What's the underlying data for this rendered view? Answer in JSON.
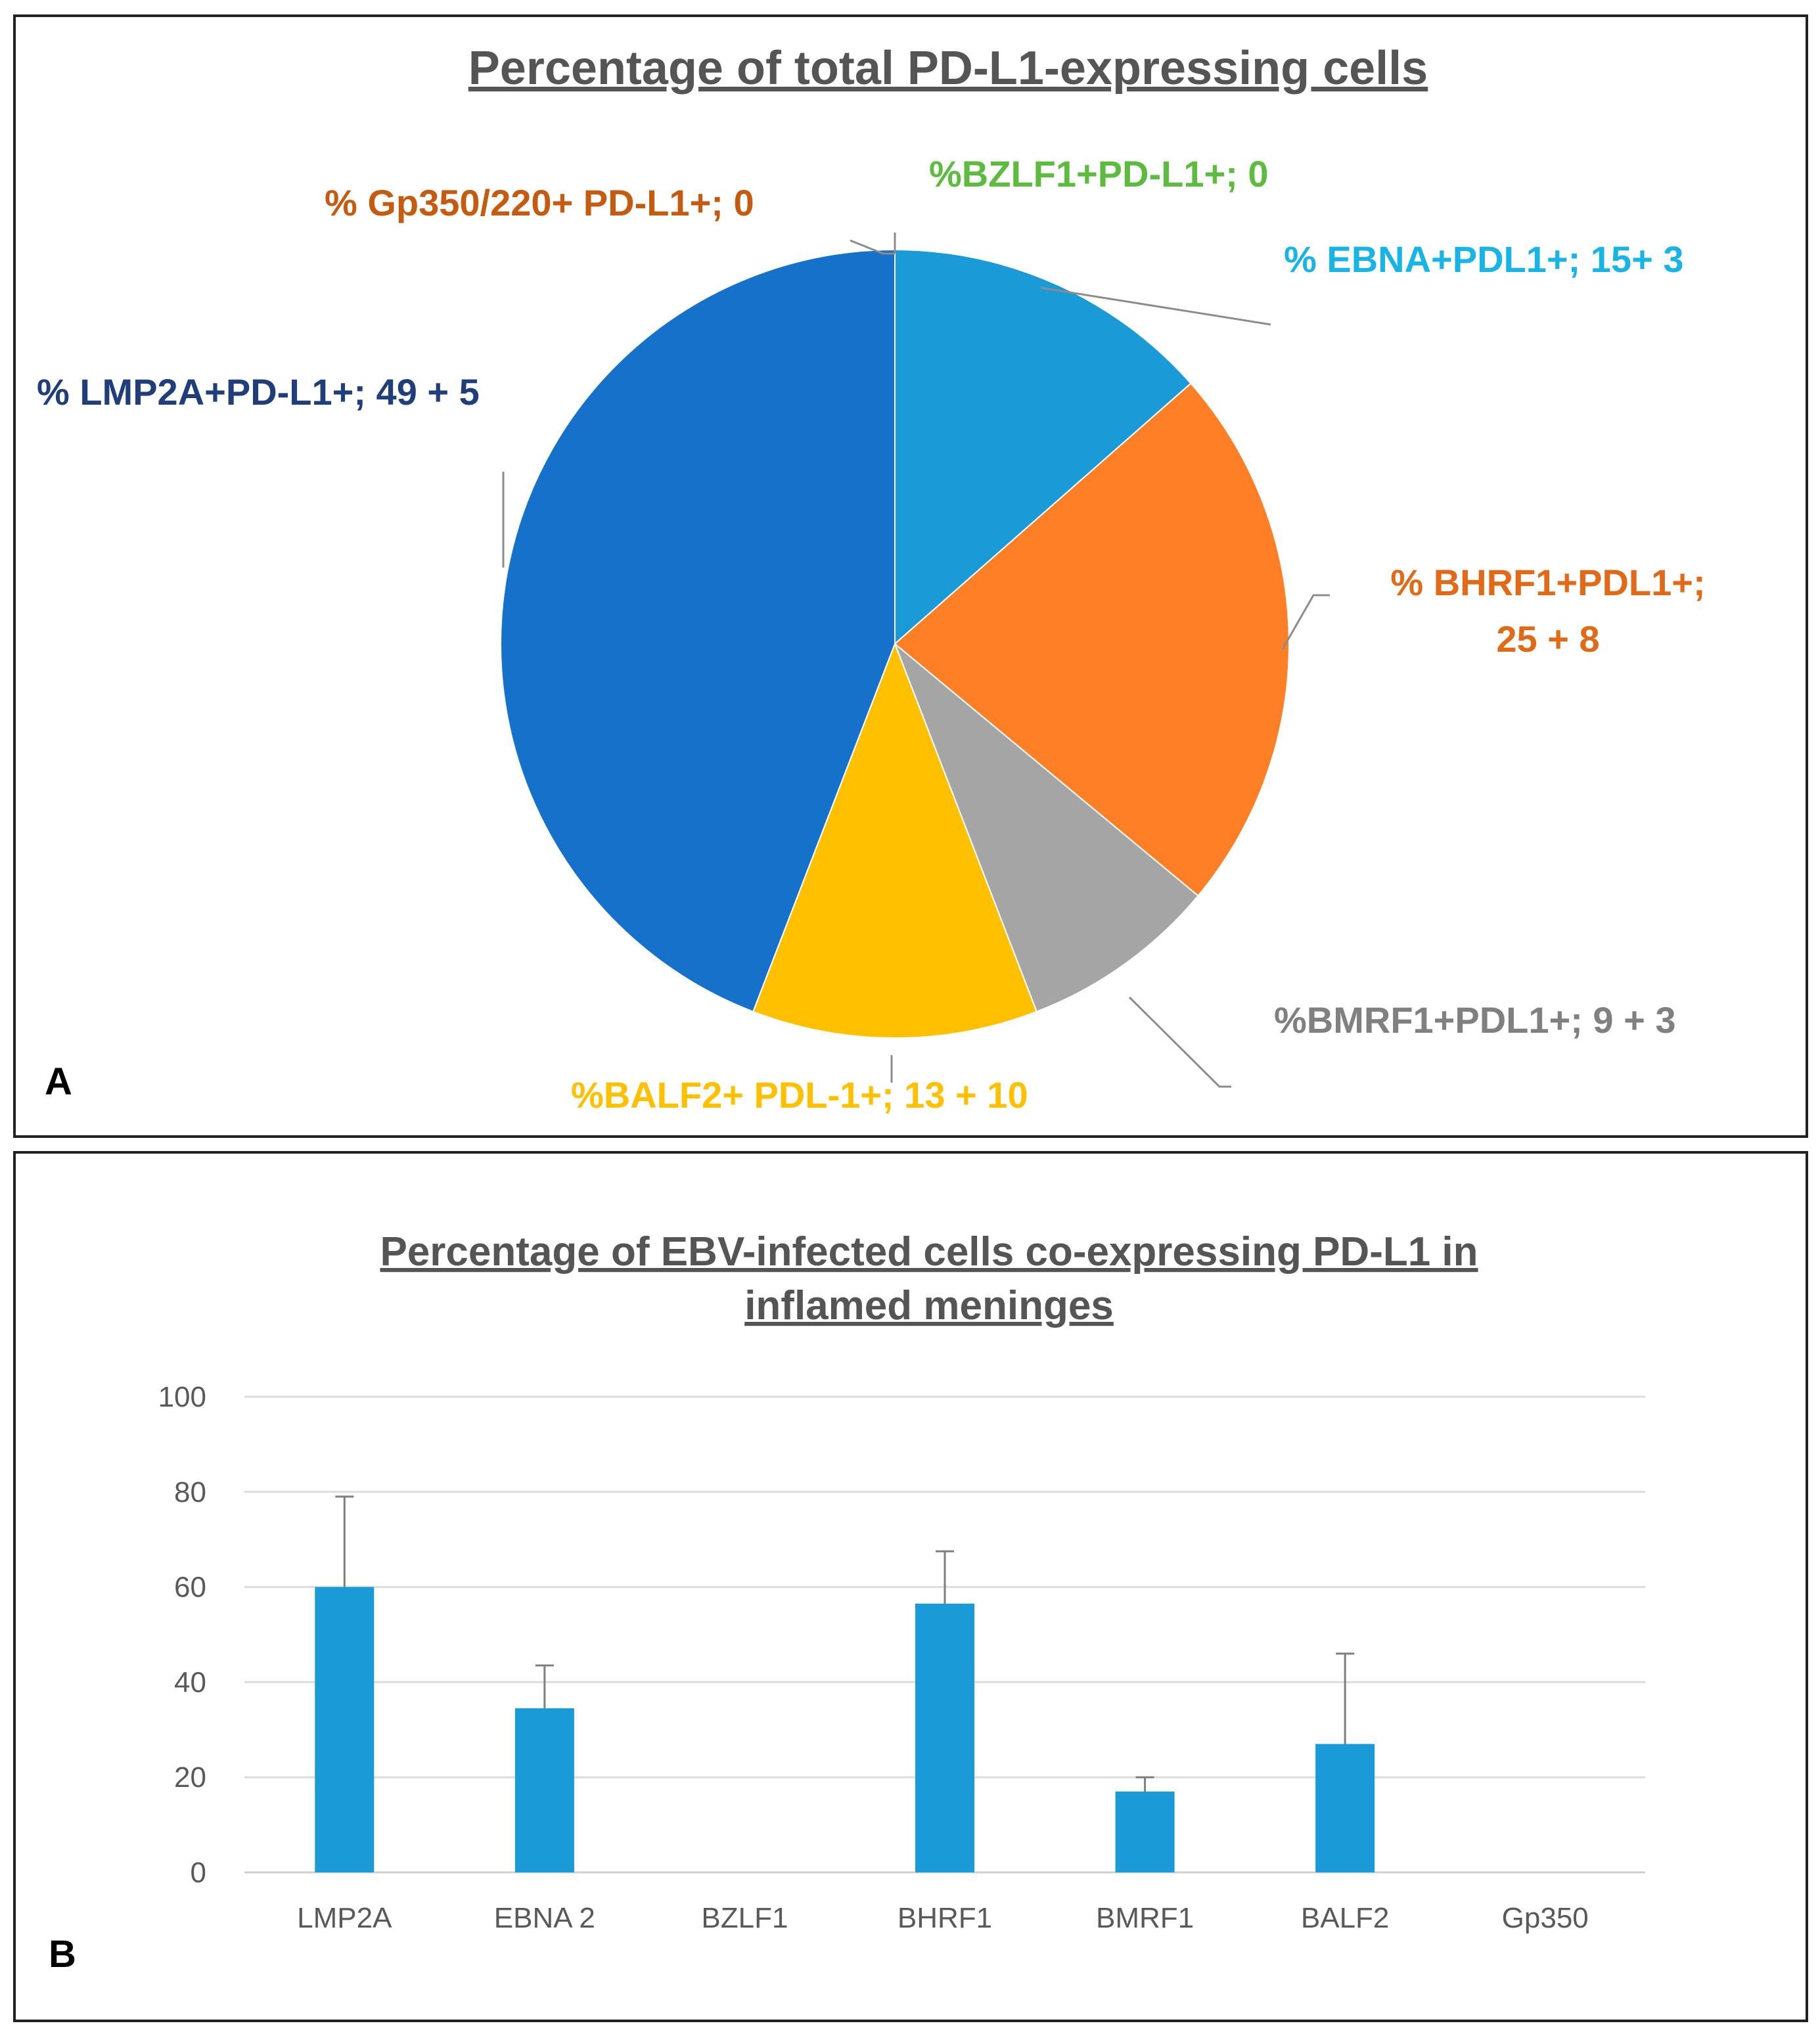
{
  "panel_a": {
    "letter": "A"
  },
  "panel_b": {
    "letter": "B"
  },
  "chart_data": [
    {
      "type": "pie",
      "title": "Percentage of total PD-L1-expressing cells",
      "slices": [
        {
          "name": "EBNA",
          "value": 15,
          "label": "% EBNA+PDL1+; 15+ 3",
          "color": "#1A9AD6",
          "label_color": "#19B4E6"
        },
        {
          "name": "BHRF1",
          "value": 25,
          "label_line1": "% BHRF1+PDL1+;",
          "label_line2": "25 + 8",
          "color": "#FF7F27",
          "label_color": "#E06A17"
        },
        {
          "name": "BMRF1",
          "value": 9,
          "label": "%BMRF1+PDL1+; 9 + 3",
          "color": "#A5A5A5",
          "label_color": "#808080"
        },
        {
          "name": "BALF2",
          "value": 13,
          "label": "%BALF2+ PDL-1+; 13 + 10",
          "color": "#FFC000",
          "label_color": "#FFC000"
        },
        {
          "name": "LMP2A",
          "value": 49,
          "label": "% LMP2A+PD-L1+; 49 + 5",
          "color": "#1571C9",
          "label_color": "#1F3E7A"
        },
        {
          "name": "Gp350/220",
          "value": 0,
          "label": "% Gp350/220+ PD-L1+; 0",
          "color": "#C55A11",
          "label_color": "#C55A11"
        },
        {
          "name": "BZLF1",
          "value": 0,
          "label": "%BZLF1+PD-L1+; 0",
          "color": "#5DBB3F",
          "label_color": "#5DBB3F"
        }
      ]
    },
    {
      "type": "bar",
      "title_line1": "Percentage of EBV-infected cells co-expressing PD-L1 in",
      "title_line2": "inflamed meninges",
      "categories": [
        "LMP2A",
        "EBNA 2",
        "BZLF1",
        "BHRF1",
        "BMRF1",
        "BALF2",
        "Gp350"
      ],
      "values": [
        60,
        34.5,
        0,
        56.5,
        17,
        27,
        0
      ],
      "error_upper": [
        79,
        43.5,
        0,
        67.5,
        20,
        46,
        0
      ],
      "ylim": [
        0,
        100
      ],
      "yticks": [
        0,
        20,
        40,
        60,
        80,
        100
      ],
      "bar_color": "#1A9AD6",
      "grid": true,
      "xlabel": "",
      "ylabel": ""
    }
  ]
}
